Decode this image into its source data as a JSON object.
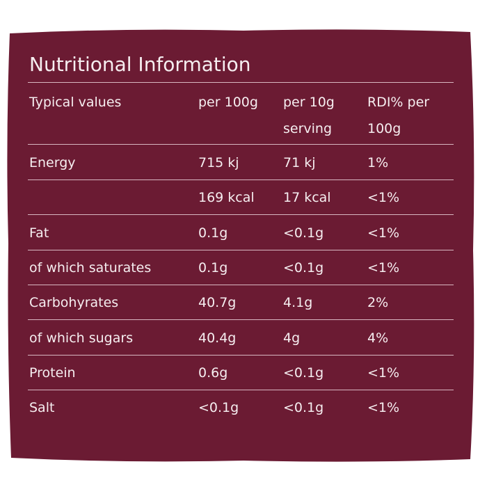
{
  "title": "Nutritional Information",
  "table": {
    "header": [
      "Typical values",
      "per 100g",
      "per 10g serving",
      "RDI% per 100g"
    ],
    "rows": [
      [
        "Energy",
        "715 kj",
        "71 kj",
        "1%"
      ],
      [
        null,
        "169 kcal",
        "17 kcal",
        "<1%"
      ],
      [
        "Fat",
        "0.1g",
        "<0.1g",
        "<1%"
      ],
      [
        "of which saturates",
        "0.1g",
        "<0.1g",
        "<1%"
      ],
      [
        "Carbohyrates",
        "40.7g",
        "4.1g",
        "2%"
      ],
      [
        "of which sugars",
        "40.4g",
        "4g",
        "4%"
      ],
      [
        "Protein",
        "0.6g",
        "<0.1g",
        "<1%"
      ],
      [
        "Salt",
        "<0.1g",
        "<0.1g",
        "<1%"
      ]
    ]
  }
}
